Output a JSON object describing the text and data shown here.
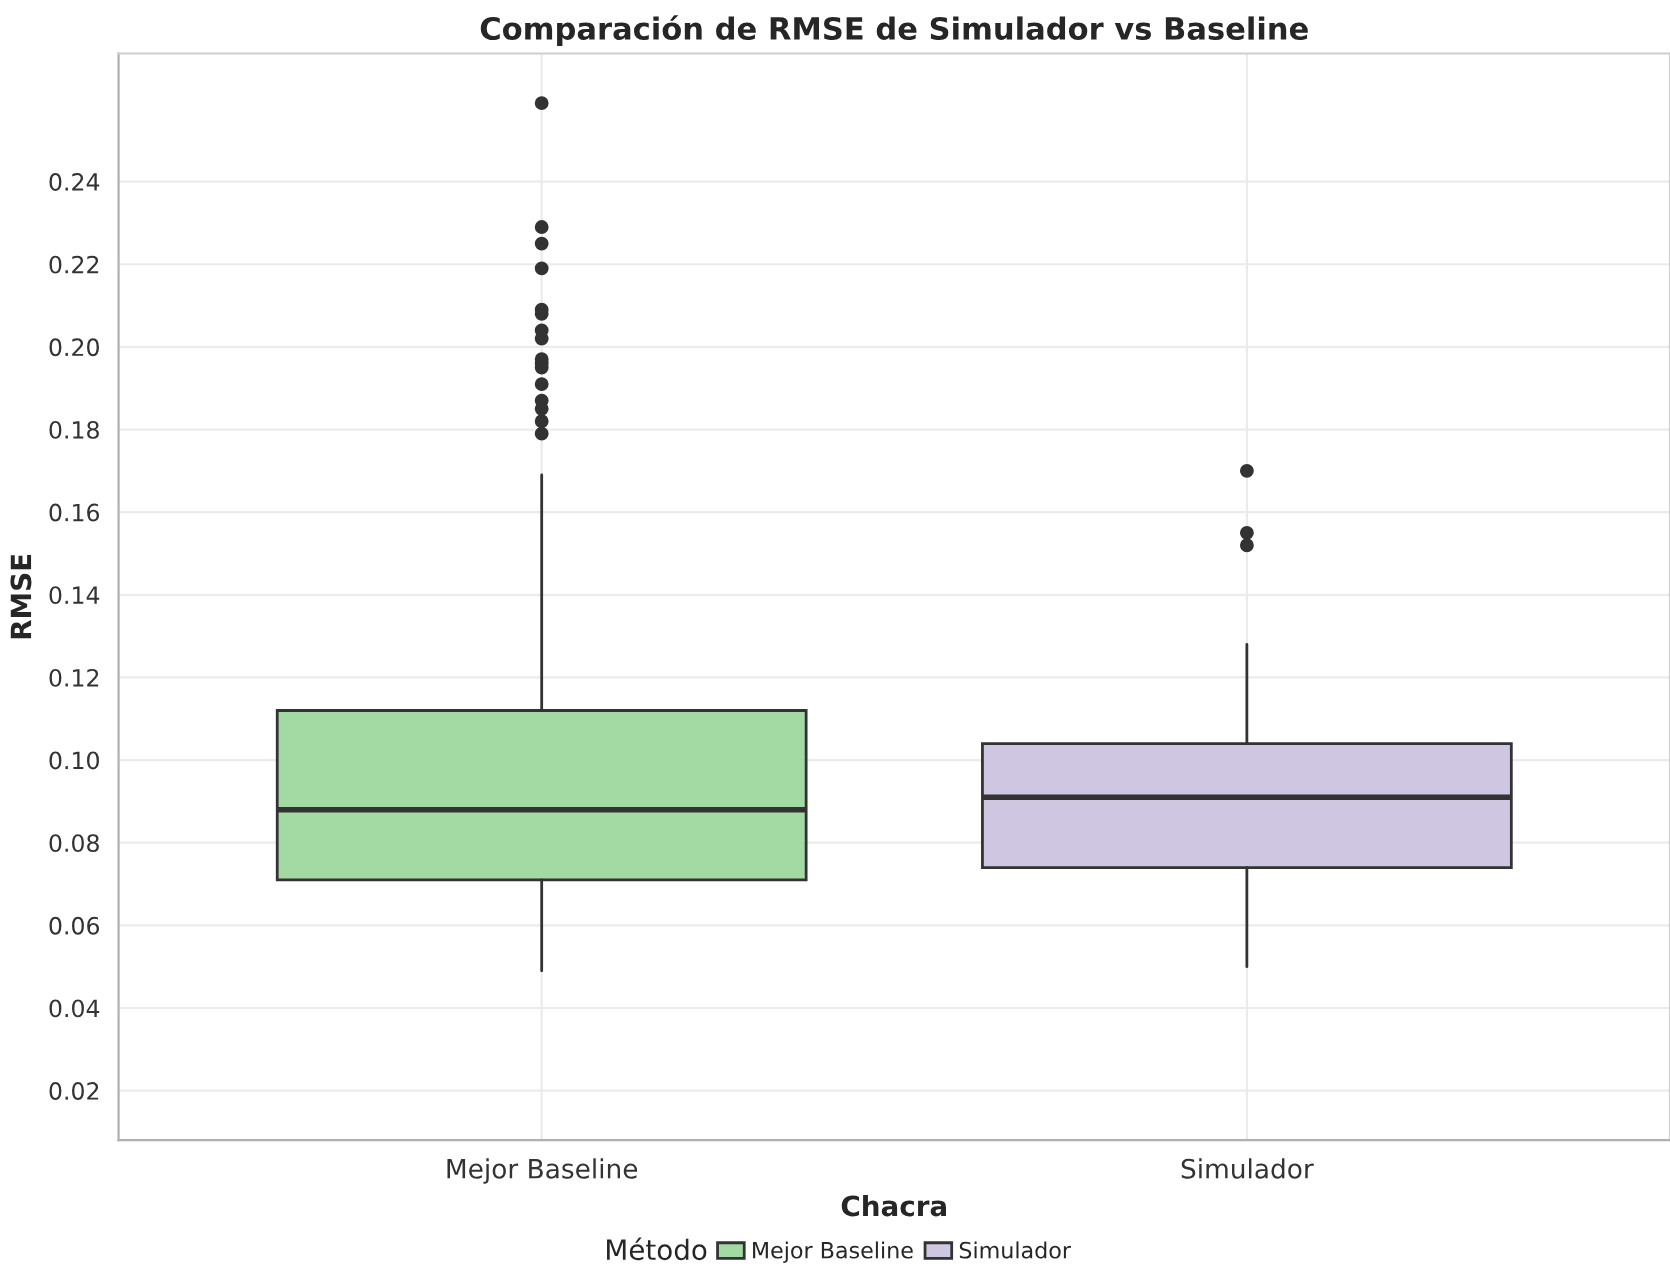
{
  "chart_data": {
    "type": "box",
    "title": "Comparación de RMSE de Simulador vs Baseline",
    "xlabel": "Chacra",
    "ylabel": "RMSE",
    "legend_title": "Método",
    "categories": [
      "Mejor Baseline",
      "Simulador"
    ],
    "series": [
      {
        "name": "Mejor Baseline",
        "color": "#a3d9a3",
        "boxes": [
          {
            "low": 0.049,
            "q1": 0.071,
            "median": 0.088,
            "q3": 0.112,
            "high": 0.169,
            "outliers": [
              0.259,
              0.229,
              0.225,
              0.219,
              0.209,
              0.208,
              0.204,
              0.202,
              0.197,
              0.196,
              0.195,
              0.191,
              0.187,
              0.185,
              0.182,
              0.179
            ]
          },
          null
        ]
      },
      {
        "name": "Simulador",
        "color": "#cfc6e1",
        "boxes": [
          null,
          {
            "low": 0.05,
            "q1": 0.074,
            "median": 0.091,
            "q3": 0.104,
            "high": 0.128,
            "outliers": [
              0.17,
              0.155,
              0.152
            ]
          }
        ]
      }
    ],
    "ylim": [
      0.008,
      0.271
    ],
    "yticks": [
      0.02,
      0.04,
      0.06,
      0.08,
      {
        "value": 0.1,
        "label": "0.10"
      },
      0.12,
      0.14,
      0.16,
      0.18,
      {
        "value": 0.2,
        "label": "0.20"
      },
      0.22,
      0.24
    ],
    "grid": true,
    "legend": "bottom"
  }
}
